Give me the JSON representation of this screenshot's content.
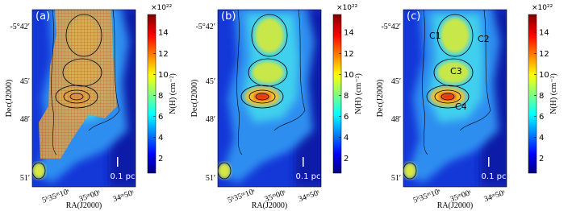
{
  "panels": [
    {
      "label": "(a)",
      "ylabel": "Dec(J2000)",
      "xlabel": "RA(J2000)",
      "yticks": [
        "-5°42′",
        "45′",
        "48′",
        "51′"
      ],
      "xticks": [
        "5ʰ35ᵐ10ˢ",
        "35ᵐ00ˢ",
        "34ᵐ50ˢ"
      ],
      "scalebar": "0.1 pc",
      "colorbar": {
        "label": "N(H) (cm⁻²)",
        "exponent": "×10²²",
        "lim": [
          0.6,
          15.7
        ],
        "ticks": [
          2,
          4,
          6,
          8,
          10,
          12,
          14
        ]
      }
    },
    {
      "label": "(b)",
      "ylabel": "Dec(J2000)",
      "xlabel": "RA(J2000)",
      "yticks": [
        "-5°42′",
        "45′",
        "48′",
        "51′"
      ],
      "xticks": [
        "5ʰ35ᵐ10ˢ",
        "35ᵐ00ˢ",
        "34ᵐ50ˢ"
      ],
      "scalebar": "0.1 pc",
      "colorbar": {
        "label": "N(H) (cm⁻²)",
        "exponent": "×10²²",
        "lim": [
          0.6,
          15.7
        ],
        "ticks": [
          2,
          4,
          6,
          8,
          10,
          12,
          14
        ]
      }
    },
    {
      "label": "(c)",
      "ylabel": "Dec(J2000)",
      "xlabel": "RA(J2000)",
      "yticks": [
        "-5°42′",
        "45′",
        "48′",
        "51′"
      ],
      "xticks": [
        "5ʰ35ᵐ10ˢ",
        "35ᵐ00ˢ",
        "34ᵐ50ˢ"
      ],
      "scalebar": "0.1 pc",
      "annotations": [
        "C1",
        "C2",
        "C3",
        "C4"
      ],
      "colorbar": {
        "label": "N(H) (cm⁻²)",
        "exponent": "×10²²",
        "lim": [
          0.6,
          15.7
        ],
        "ticks": [
          2,
          4,
          6,
          8,
          10,
          12,
          14
        ]
      }
    }
  ]
}
